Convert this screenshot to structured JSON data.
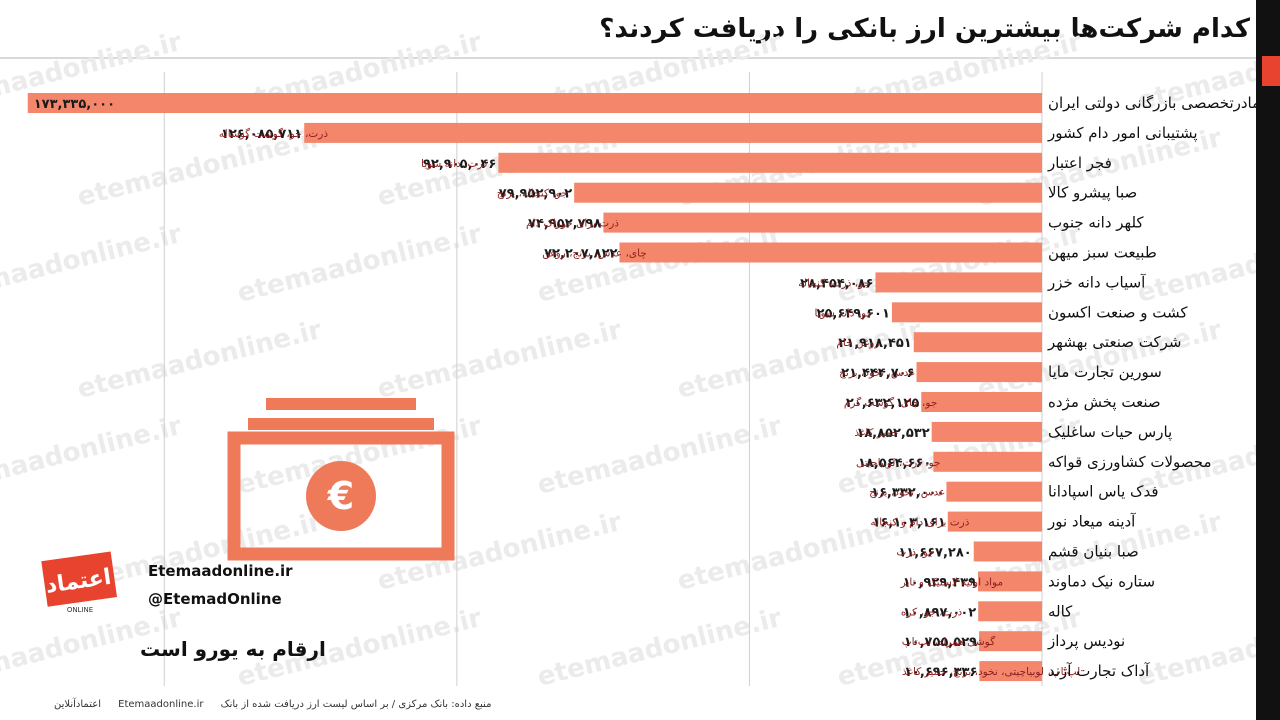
{
  "title": "کدام شرکت‌ها بیشترین ارز بانکی را دریافت کردند؟",
  "watermark": "etemaadonline.ir",
  "brand": {
    "website": "Etemaadonline.ir",
    "twitter": "@EtemadOnline",
    "logo_text": "اعتماد",
    "logo_sub": "ONLINE"
  },
  "note": "ارقام به یورو است",
  "footer": {
    "source": "منبع داده: بانک مرکزی / بر اساس لیست ارز دریافت شده از بانک",
    "site": "Etemaadonline.ir",
    "publisher": "اعتمادآنلاین"
  },
  "colors": {
    "bar": "#f4876b",
    "icon": "#ee7a5a",
    "accent": "#e8432e",
    "text": "#111111",
    "item_text": "#8b1f1f"
  },
  "icons": [
    "euro-banknote-icon"
  ],
  "chart_data": {
    "type": "bar",
    "orientation": "horizontal",
    "xlim": [
      0,
      175000000
    ],
    "grid": true,
    "categories": [
      "مادرتخصصی بازرگانی دولتی ایران",
      "پشتیبانی امور دام کشور",
      "فجر اعتبار",
      "صبا پیشرو کالا",
      "کلهر دانه جنوب",
      "طبیعت سبز میهن",
      "آسیاب دانه خزر",
      "کشت و صنعت اکسون",
      "شرکت صنعتی بهشهر",
      "سورین تجارت مایا",
      "صنعت پخش مژده",
      "پارس حیات ساغلیک",
      "محصولات کشاورزی قواکه",
      "فدک یاس اسپادانا",
      "آدینه میعاد نور",
      "صبا بنیان قشم",
      "ستاره نیک دماوند",
      "کاله",
      "نودیس پرداز",
      "آداک تجارت آژند"
    ],
    "values": [
      173335000,
      126085711,
      92905046,
      79952902,
      74952798,
      72207822,
      28454086,
      25649601,
      21918451,
      21444706,
      20632125,
      18852532,
      18564660,
      16332000,
      16103161,
      11667280,
      10929439,
      10897002,
      10755529,
      10696336
    ],
    "value_labels": [
      "۱۷۳,۳۳۵,۰۰۰",
      "۱۲۶,۰۸۵,۷۱۱",
      "۹۲,۹۰۵,۰۴۶",
      "۷۹,۹۵۲,۹۰۲",
      "۷۴,۹۵۲,۷۹۸",
      "۷۲,۲۰۷,۸۲۲",
      "۲۸,۴۵۴,۰۸۶",
      "۲۵,۶۴۹,۶۰۱",
      "۲۱,۹۱۸,۴۵۱",
      "۲۱,۴۴۴,۷۰۶",
      "۲۰,۶۳۲,۱۲۵",
      "۱۸,۸۵۲,۵۳۲",
      "۱۸,۵۶۴,۶۶۰",
      "۱۶,۳۳۲,۰۰۰",
      "۱۶,۱۰۳,۱۶۱",
      "۱۱,۶۶۷,۲۸۰",
      "۱۰,۹۲۹,۴۳۹",
      "۱۰,۸۹۷,۰۰۲",
      "۱۰,۷۵۵,۵۲۹",
      "۱۰,۶۹۶,۳۳۶"
    ],
    "items": [
      "",
      "ذرت، جو، گوشت گوساله",
      "ذرت، دانه سویا",
      "جو، کنجاله، برنج",
      "ذرت برای خوراک دام",
      "چای، عدس، برنج، روغن",
      "جو، ذرت، کنجاله",
      "جو، دانه سویا",
      "روغن خام",
      "عدس، نخود، برنج",
      "جو، چای، گوشت گرم",
      "خمیر کاغذ",
      "جو، ذرت، لوبیاچیتی",
      "عدس، نخود، برنج",
      "ذرت برای دام و کنجاله",
      "جو، ذرت",
      "مواد اولیه لاستیک و تایر",
      "ذرت، جو، کره",
      "گوشی همراه، لپ‌تاپ",
      "لپ‌تاپ، لوبیاچیتی، نخود، برنج، خمیر کاغذ"
    ]
  }
}
